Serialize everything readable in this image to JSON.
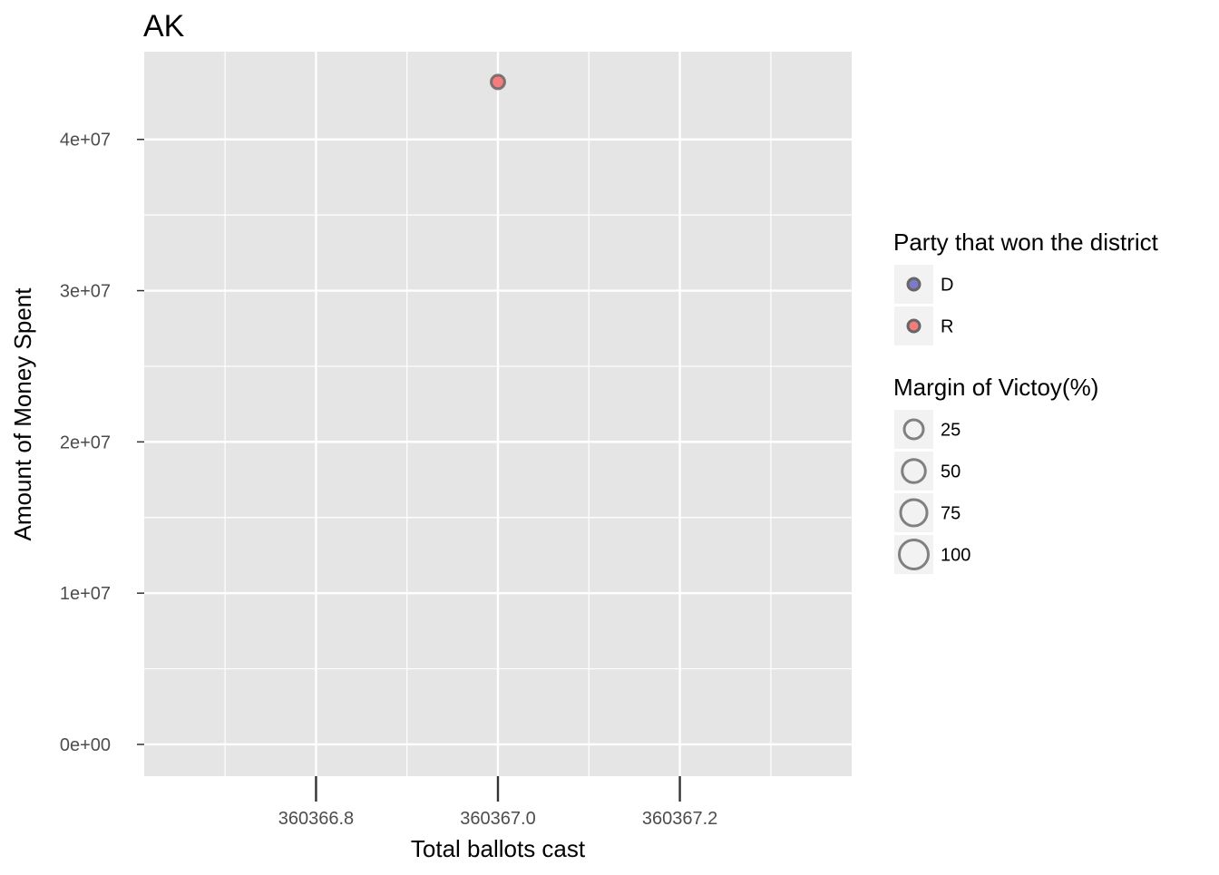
{
  "chart_data": {
    "type": "scatter",
    "title": "AK",
    "xlabel": "Total ballots cast",
    "ylabel": "Amount of Money Spent",
    "xlim": [
      360366.6111,
      360367.3889
    ],
    "ylim": [
      -2100000,
      45800000
    ],
    "x_ticks": [
      {
        "value": 360366.8,
        "label": "360366.8"
      },
      {
        "value": 360367.0,
        "label": "360367.0"
      },
      {
        "value": 360367.2,
        "label": "360367.2"
      }
    ],
    "x_minor": [
      360366.7,
      360366.9,
      360367.1,
      360367.3
    ],
    "y_ticks": [
      {
        "value": 0,
        "label": "0e+00"
      },
      {
        "value": 10000000,
        "label": "1e+07"
      },
      {
        "value": 20000000,
        "label": "2e+07"
      },
      {
        "value": 30000000,
        "label": "3e+07"
      },
      {
        "value": 40000000,
        "label": "4e+07"
      }
    ],
    "y_minor": [
      5000000,
      15000000,
      25000000,
      35000000
    ],
    "grid": true,
    "legend_position": "right",
    "points": [
      {
        "x": 360367.0,
        "y": 43800000,
        "party": "R",
        "margin": 5
      }
    ],
    "colors": {
      "D": "#7b7bc8",
      "R": "#f47c7c",
      "stroke": "#666666",
      "panel": "#e5e5e5",
      "grid": "#ffffff"
    },
    "legends": [
      {
        "title": "Party that won the district",
        "items": [
          {
            "label": "D",
            "key": "D"
          },
          {
            "label": "R",
            "key": "R"
          }
        ]
      },
      {
        "title": "Margin of Victoy(%)",
        "items": [
          {
            "label": "25",
            "value": 25
          },
          {
            "label": "50",
            "value": 50
          },
          {
            "label": "75",
            "value": 75
          },
          {
            "label": "100",
            "value": 100
          }
        ]
      }
    ]
  }
}
